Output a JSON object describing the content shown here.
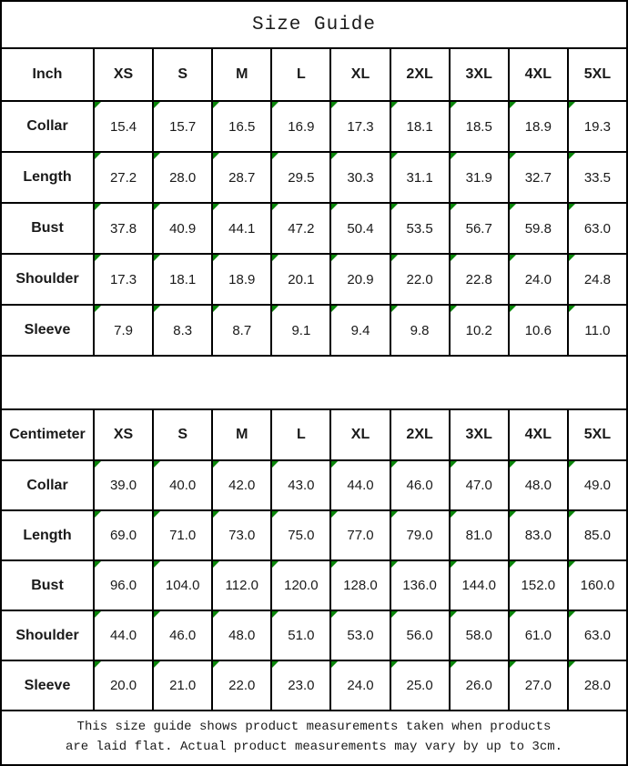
{
  "title": "Size Guide",
  "colors": {
    "border": "#000000",
    "marker_green": "#0a850a",
    "background": "#ffffff"
  },
  "icons": {
    "cell_flag": "green top-left corner triangle marker"
  },
  "tables": [
    {
      "unit_label": "Inch",
      "size_headers": [
        "XS",
        "S",
        "M",
        "L",
        "XL",
        "2XL",
        "3XL",
        "4XL",
        "5XL"
      ],
      "rows": [
        {
          "label": "Collar",
          "values": [
            "15.4",
            "15.7",
            "16.5",
            "16.9",
            "17.3",
            "18.1",
            "18.5",
            "18.9",
            "19.3"
          ]
        },
        {
          "label": "Length",
          "values": [
            "27.2",
            "28.0",
            "28.7",
            "29.5",
            "30.3",
            "31.1",
            "31.9",
            "32.7",
            "33.5"
          ]
        },
        {
          "label": "Bust",
          "values": [
            "37.8",
            "40.9",
            "44.1",
            "47.2",
            "50.4",
            "53.5",
            "56.7",
            "59.8",
            "63.0"
          ]
        },
        {
          "label": "Shoulder",
          "values": [
            "17.3",
            "18.1",
            "18.9",
            "20.1",
            "20.9",
            "22.0",
            "22.8",
            "24.0",
            "24.8"
          ]
        },
        {
          "label": "Sleeve",
          "values": [
            "7.9",
            "8.3",
            "8.7",
            "9.1",
            "9.4",
            "9.8",
            "10.2",
            "10.6",
            "11.0"
          ]
        }
      ]
    },
    {
      "unit_label": "Centimeter",
      "size_headers": [
        "XS",
        "S",
        "M",
        "L",
        "XL",
        "2XL",
        "3XL",
        "4XL",
        "5XL"
      ],
      "rows": [
        {
          "label": "Collar",
          "values": [
            "39.0",
            "40.0",
            "42.0",
            "43.0",
            "44.0",
            "46.0",
            "47.0",
            "48.0",
            "49.0"
          ]
        },
        {
          "label": "Length",
          "values": [
            "69.0",
            "71.0",
            "73.0",
            "75.0",
            "77.0",
            "79.0",
            "81.0",
            "83.0",
            "85.0"
          ]
        },
        {
          "label": "Bust",
          "values": [
            "96.0",
            "104.0",
            "112.0",
            "120.0",
            "128.0",
            "136.0",
            "144.0",
            "152.0",
            "160.0"
          ]
        },
        {
          "label": "Shoulder",
          "values": [
            "44.0",
            "46.0",
            "48.0",
            "51.0",
            "53.0",
            "56.0",
            "58.0",
            "61.0",
            "63.0"
          ]
        },
        {
          "label": "Sleeve",
          "values": [
            "20.0",
            "21.0",
            "22.0",
            "23.0",
            "24.0",
            "25.0",
            "26.0",
            "27.0",
            "28.0"
          ]
        }
      ]
    }
  ],
  "footer_note_lines": [
    "This size guide shows product measurements taken when products",
    "are laid flat. Actual product measurements may vary by up to 3cm."
  ]
}
